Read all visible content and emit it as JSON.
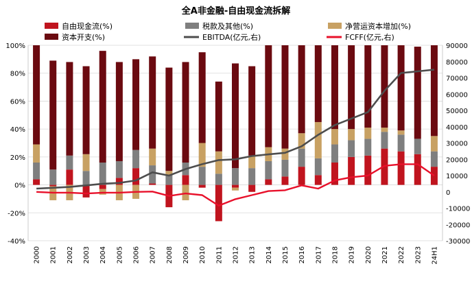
{
  "chart_data": {
    "type": "bar+line",
    "title": "全A非金融-自由现金流拆解",
    "categories": [
      "2000",
      "2001",
      "2002",
      "2003",
      "2004",
      "2005",
      "2006",
      "2007",
      "2008",
      "2009",
      "2010",
      "2011",
      "2012",
      "2013",
      "2014",
      "2015",
      "2016",
      "2017",
      "2018",
      "2019",
      "2020",
      "2021",
      "2022",
      "2023",
      "24H1"
    ],
    "left_axis": {
      "min": -40,
      "max": 100,
      "step": 20,
      "tick_labels": [
        "-40%",
        "-20%",
        "0%",
        "20%",
        "40%",
        "60%",
        "80%",
        "100%"
      ]
    },
    "right_axis": {
      "min": -30000,
      "max": 90000,
      "step": 10000,
      "tick_labels": [
        "-30000",
        "-20000",
        "-10000",
        "0",
        "10000",
        "20000",
        "30000",
        "40000",
        "50000",
        "60000",
        "70000",
        "80000",
        "90000"
      ]
    },
    "legend": {
      "placement": "top",
      "items": [
        {
          "key": "fcf",
          "label": "自由现金流(%)",
          "color": "#C0141E"
        },
        {
          "key": "tax",
          "label": "税款及其他(%)",
          "color": "#7F7F7F"
        },
        {
          "key": "nwc",
          "label": "净营运资本增加(%)",
          "color": "#C8A163"
        },
        {
          "key": "capex",
          "label": "资本开支(%)",
          "color": "#6B0A10"
        },
        {
          "key": "ebitda",
          "label": "EBITDA(亿元,右)",
          "color": "#4D4D4D"
        },
        {
          "key": "fcff",
          "label": "FCFF(亿元,右)",
          "color": "#E8102A"
        }
      ]
    },
    "series": [
      {
        "name": "自由现金流(%)",
        "key": "fcf",
        "type": "bar",
        "values": [
          4,
          -1,
          11,
          -9,
          -3,
          5,
          12,
          1,
          -16,
          7,
          -2,
          -26,
          -2,
          -5,
          4,
          6,
          13,
          7,
          16,
          20,
          21,
          26,
          24,
          22,
          13
        ]
      },
      {
        "name": "税款及其他(%)",
        "key": "tax",
        "type": "bar",
        "values": [
          12,
          11,
          10,
          10,
          16,
          12,
          13,
          13,
          7,
          9,
          13,
          8,
          12,
          12,
          13,
          12,
          13,
          12,
          13,
          12,
          12,
          12,
          12,
          11,
          11
        ]
      },
      {
        "name": "净营运资本增加(%)",
        "key": "nwc",
        "type": "bar",
        "values": [
          13,
          -10,
          -11,
          12,
          -4,
          -11,
          -10,
          12,
          3,
          -11,
          17,
          16,
          -2,
          9,
          10,
          8,
          11,
          26,
          11,
          8,
          8,
          3,
          3,
          0,
          11
        ]
      },
      {
        "name": "资本开支(%)",
        "key": "capex",
        "type": "bar",
        "values": [
          71,
          78,
          67,
          63,
          80,
          71,
          65,
          66,
          74,
          72,
          65,
          50,
          75,
          64,
          73,
          74,
          63,
          55,
          60,
          60,
          59,
          59,
          61,
          66,
          65
        ]
      },
      {
        "name": "EBITDA(亿元,右)",
        "key": "ebitda",
        "type": "line",
        "values": [
          2000,
          2500,
          3000,
          4000,
          5000,
          5500,
          7000,
          12000,
          10000,
          14000,
          17000,
          19500,
          20000,
          22000,
          23000,
          24000,
          28000,
          35000,
          41000,
          45000,
          49000,
          62000,
          73000,
          74000,
          75000
        ]
      },
      {
        "name": "FCFF(亿元,右)",
        "key": "fcff",
        "type": "line",
        "values": [
          0,
          -500,
          -500,
          -1000,
          -500,
          -500,
          0,
          200,
          -2500,
          -1000,
          -2000,
          -8500,
          -4500,
          -2000,
          500,
          1000,
          4000,
          2000,
          7000,
          9000,
          10000,
          16000,
          17000,
          17000,
          10000
        ]
      }
    ]
  }
}
